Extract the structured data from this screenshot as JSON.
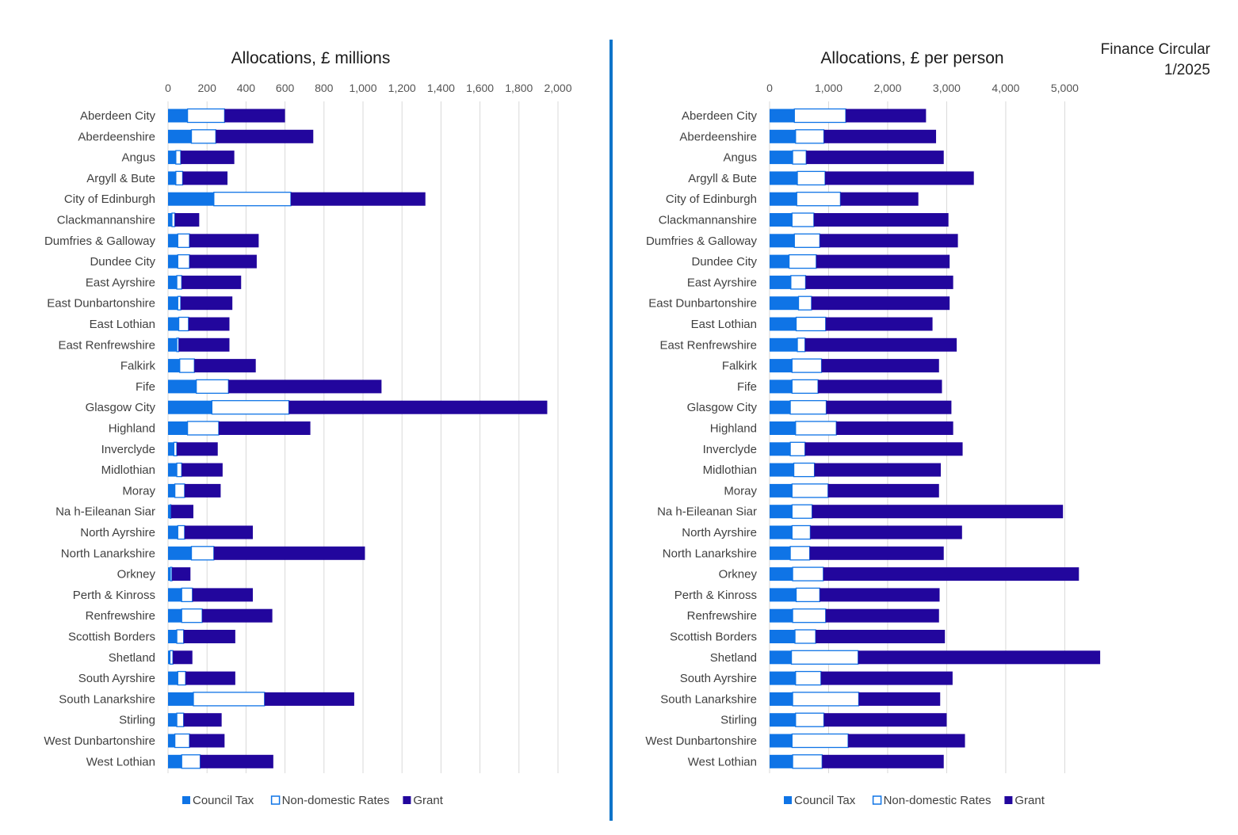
{
  "caption": {
    "line1": "Finance Circular",
    "line2": "1/2025"
  },
  "colors": {
    "council_tax": "#0f74e6",
    "non_domestic_rates": "#ffffff",
    "non_domestic_rates_border": "#0f74e6",
    "grant": "#22069d",
    "divider": "#0f74c9",
    "gridline": "#d9d9d9"
  },
  "chart_data": [
    {
      "type": "bar",
      "orientation": "horizontal",
      "stacked": true,
      "title": "Allocations, £ millions",
      "xlim": [
        0,
        2000
      ],
      "x_ticks": [
        "0",
        "200",
        "400",
        "600",
        "800",
        "1,000",
        "1,200",
        "1,400",
        "1,600",
        "1,800",
        "2,000"
      ],
      "x_axis_position": "top",
      "grid": true,
      "legend": "bottom",
      "categories": [
        "Aberdeen City",
        "Aberdeenshire",
        "Angus",
        "Argyll & Bute",
        "City of Edinburgh",
        "Clackmannanshire",
        "Dumfries & Galloway",
        "Dundee City",
        "East Ayrshire",
        "East Dunbartonshire",
        "East Lothian",
        "East Renfrewshire",
        "Falkirk",
        "Fife",
        "Glasgow City",
        "Highland",
        "Inverclyde",
        "Midlothian",
        "Moray",
        "Na h-Eileanan Siar",
        "North Ayrshire",
        "North Lanarkshire",
        "Orkney",
        "Perth & Kinross",
        "Renfrewshire",
        "Scottish Borders",
        "Shetland",
        "South Ayrshire",
        "South Lanarkshire",
        "Stirling",
        "West Dunbartonshire",
        "West Lothian"
      ],
      "series": [
        {
          "name": "Council Tax",
          "values": [
            100,
            120,
            40,
            40,
            235,
            20,
            50,
            50,
            45,
            50,
            55,
            45,
            60,
            145,
            225,
            100,
            30,
            45,
            35,
            10,
            50,
            120,
            12,
            70,
            70,
            45,
            10,
            50,
            130,
            45,
            35,
            70
          ]
        },
        {
          "name": "Non-domestic Rates",
          "values": [
            190,
            125,
            25,
            35,
            395,
            15,
            60,
            60,
            25,
            15,
            50,
            10,
            75,
            165,
            395,
            160,
            15,
            25,
            50,
            5,
            35,
            115,
            8,
            55,
            105,
            35,
            15,
            40,
            365,
            35,
            75,
            95
          ]
        },
        {
          "name": "Grant",
          "values": [
            310,
            500,
            275,
            230,
            690,
            125,
            355,
            345,
            305,
            265,
            210,
            260,
            315,
            785,
            1325,
            470,
            210,
            210,
            185,
            115,
            350,
            775,
            95,
            310,
            360,
            265,
            100,
            255,
            460,
            195,
            180,
            375
          ]
        }
      ]
    },
    {
      "type": "bar",
      "orientation": "horizontal",
      "stacked": true,
      "title": "Allocations, £ per person",
      "xlim": [
        0,
        5800
      ],
      "x_ticks": [
        "0",
        "1,000",
        "2,000",
        "3,000",
        "4,000",
        "5,000"
      ],
      "x_axis_position": "top",
      "grid": true,
      "legend": "bottom",
      "categories": [
        "Aberdeen City",
        "Aberdeenshire",
        "Angus",
        "Argyll & Bute",
        "City of Edinburgh",
        "Clackmannanshire",
        "Dumfries & Galloway",
        "Dundee City",
        "East Ayrshire",
        "East Dunbartonshire",
        "East Lothian",
        "East Renfrewshire",
        "Falkirk",
        "Fife",
        "Glasgow City",
        "Highland",
        "Inverclyde",
        "Midlothian",
        "Moray",
        "Na h-Eileanan Siar",
        "North Ayrshire",
        "North Lanarkshire",
        "Orkney",
        "Perth & Kinross",
        "Renfrewshire",
        "Scottish Borders",
        "Shetland",
        "South Ayrshire",
        "South Lanarkshire",
        "Stirling",
        "West Dunbartonshire",
        "West Lothian"
      ],
      "series": [
        {
          "name": "Council Tax",
          "values": [
            420,
            440,
            390,
            470,
            460,
            380,
            420,
            330,
            360,
            490,
            450,
            470,
            380,
            380,
            350,
            440,
            350,
            410,
            380,
            380,
            380,
            350,
            390,
            450,
            390,
            430,
            370,
            440,
            390,
            440,
            380,
            390
          ]
        },
        {
          "name": "Non-domestic Rates",
          "values": [
            870,
            480,
            230,
            470,
            740,
            370,
            430,
            460,
            250,
            220,
            500,
            130,
            500,
            440,
            610,
            690,
            250,
            350,
            610,
            340,
            310,
            330,
            520,
            400,
            560,
            350,
            1130,
            430,
            1120,
            480,
            950,
            500
          ]
        },
        {
          "name": "Grant",
          "values": [
            1360,
            1900,
            2330,
            2520,
            1320,
            2280,
            2340,
            2260,
            2500,
            2340,
            1810,
            2570,
            1990,
            2100,
            2120,
            1980,
            2670,
            2140,
            1880,
            4250,
            2570,
            2270,
            4330,
            2030,
            1920,
            2190,
            4100,
            2230,
            1380,
            2080,
            1980,
            2060
          ]
        }
      ]
    }
  ]
}
